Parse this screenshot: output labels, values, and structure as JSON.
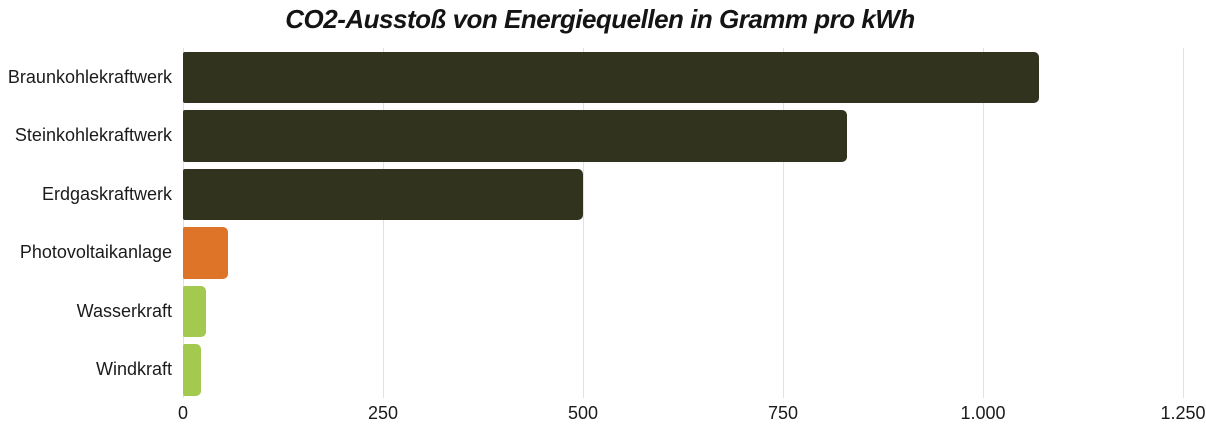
{
  "title": "CO2-Ausstoß von Energiequellen in Gramm pro kWh",
  "colors": {
    "fossil_bar": "#32331f",
    "photovoltaic_bar": "#dd7428",
    "renewable_bar": "#a4c94f",
    "gridline": "#e1e1df",
    "text": "#1b1b1b",
    "background": "#ffffff"
  },
  "chart_data": {
    "type": "bar",
    "orientation": "horizontal",
    "title": "CO2-Ausstoß von Energiequellen in Gramm pro kWh",
    "categories": [
      "Braunkohlekraftwerk",
      "Steinkohlekraftwerk",
      "Erdgaskraftwerk",
      "Photovoltaikanlage",
      "Wasserkraft",
      "Windkraft"
    ],
    "values": [
      1070,
      830,
      500,
      56,
      29,
      22
    ],
    "bar_colors": [
      "#32331f",
      "#32331f",
      "#32331f",
      "#dd7428",
      "#a4c94f",
      "#a4c94f"
    ],
    "xlabel": "",
    "ylabel": "",
    "xlim": [
      0,
      1250
    ],
    "xticks": [
      "0",
      "250",
      "500",
      "750",
      "1.000",
      "1.250"
    ],
    "xtick_values": [
      0,
      250,
      500,
      750,
      1000,
      1250
    ],
    "grid": "vertical-only",
    "legend": "none",
    "unit": "Gramm CO2 pro kWh"
  }
}
